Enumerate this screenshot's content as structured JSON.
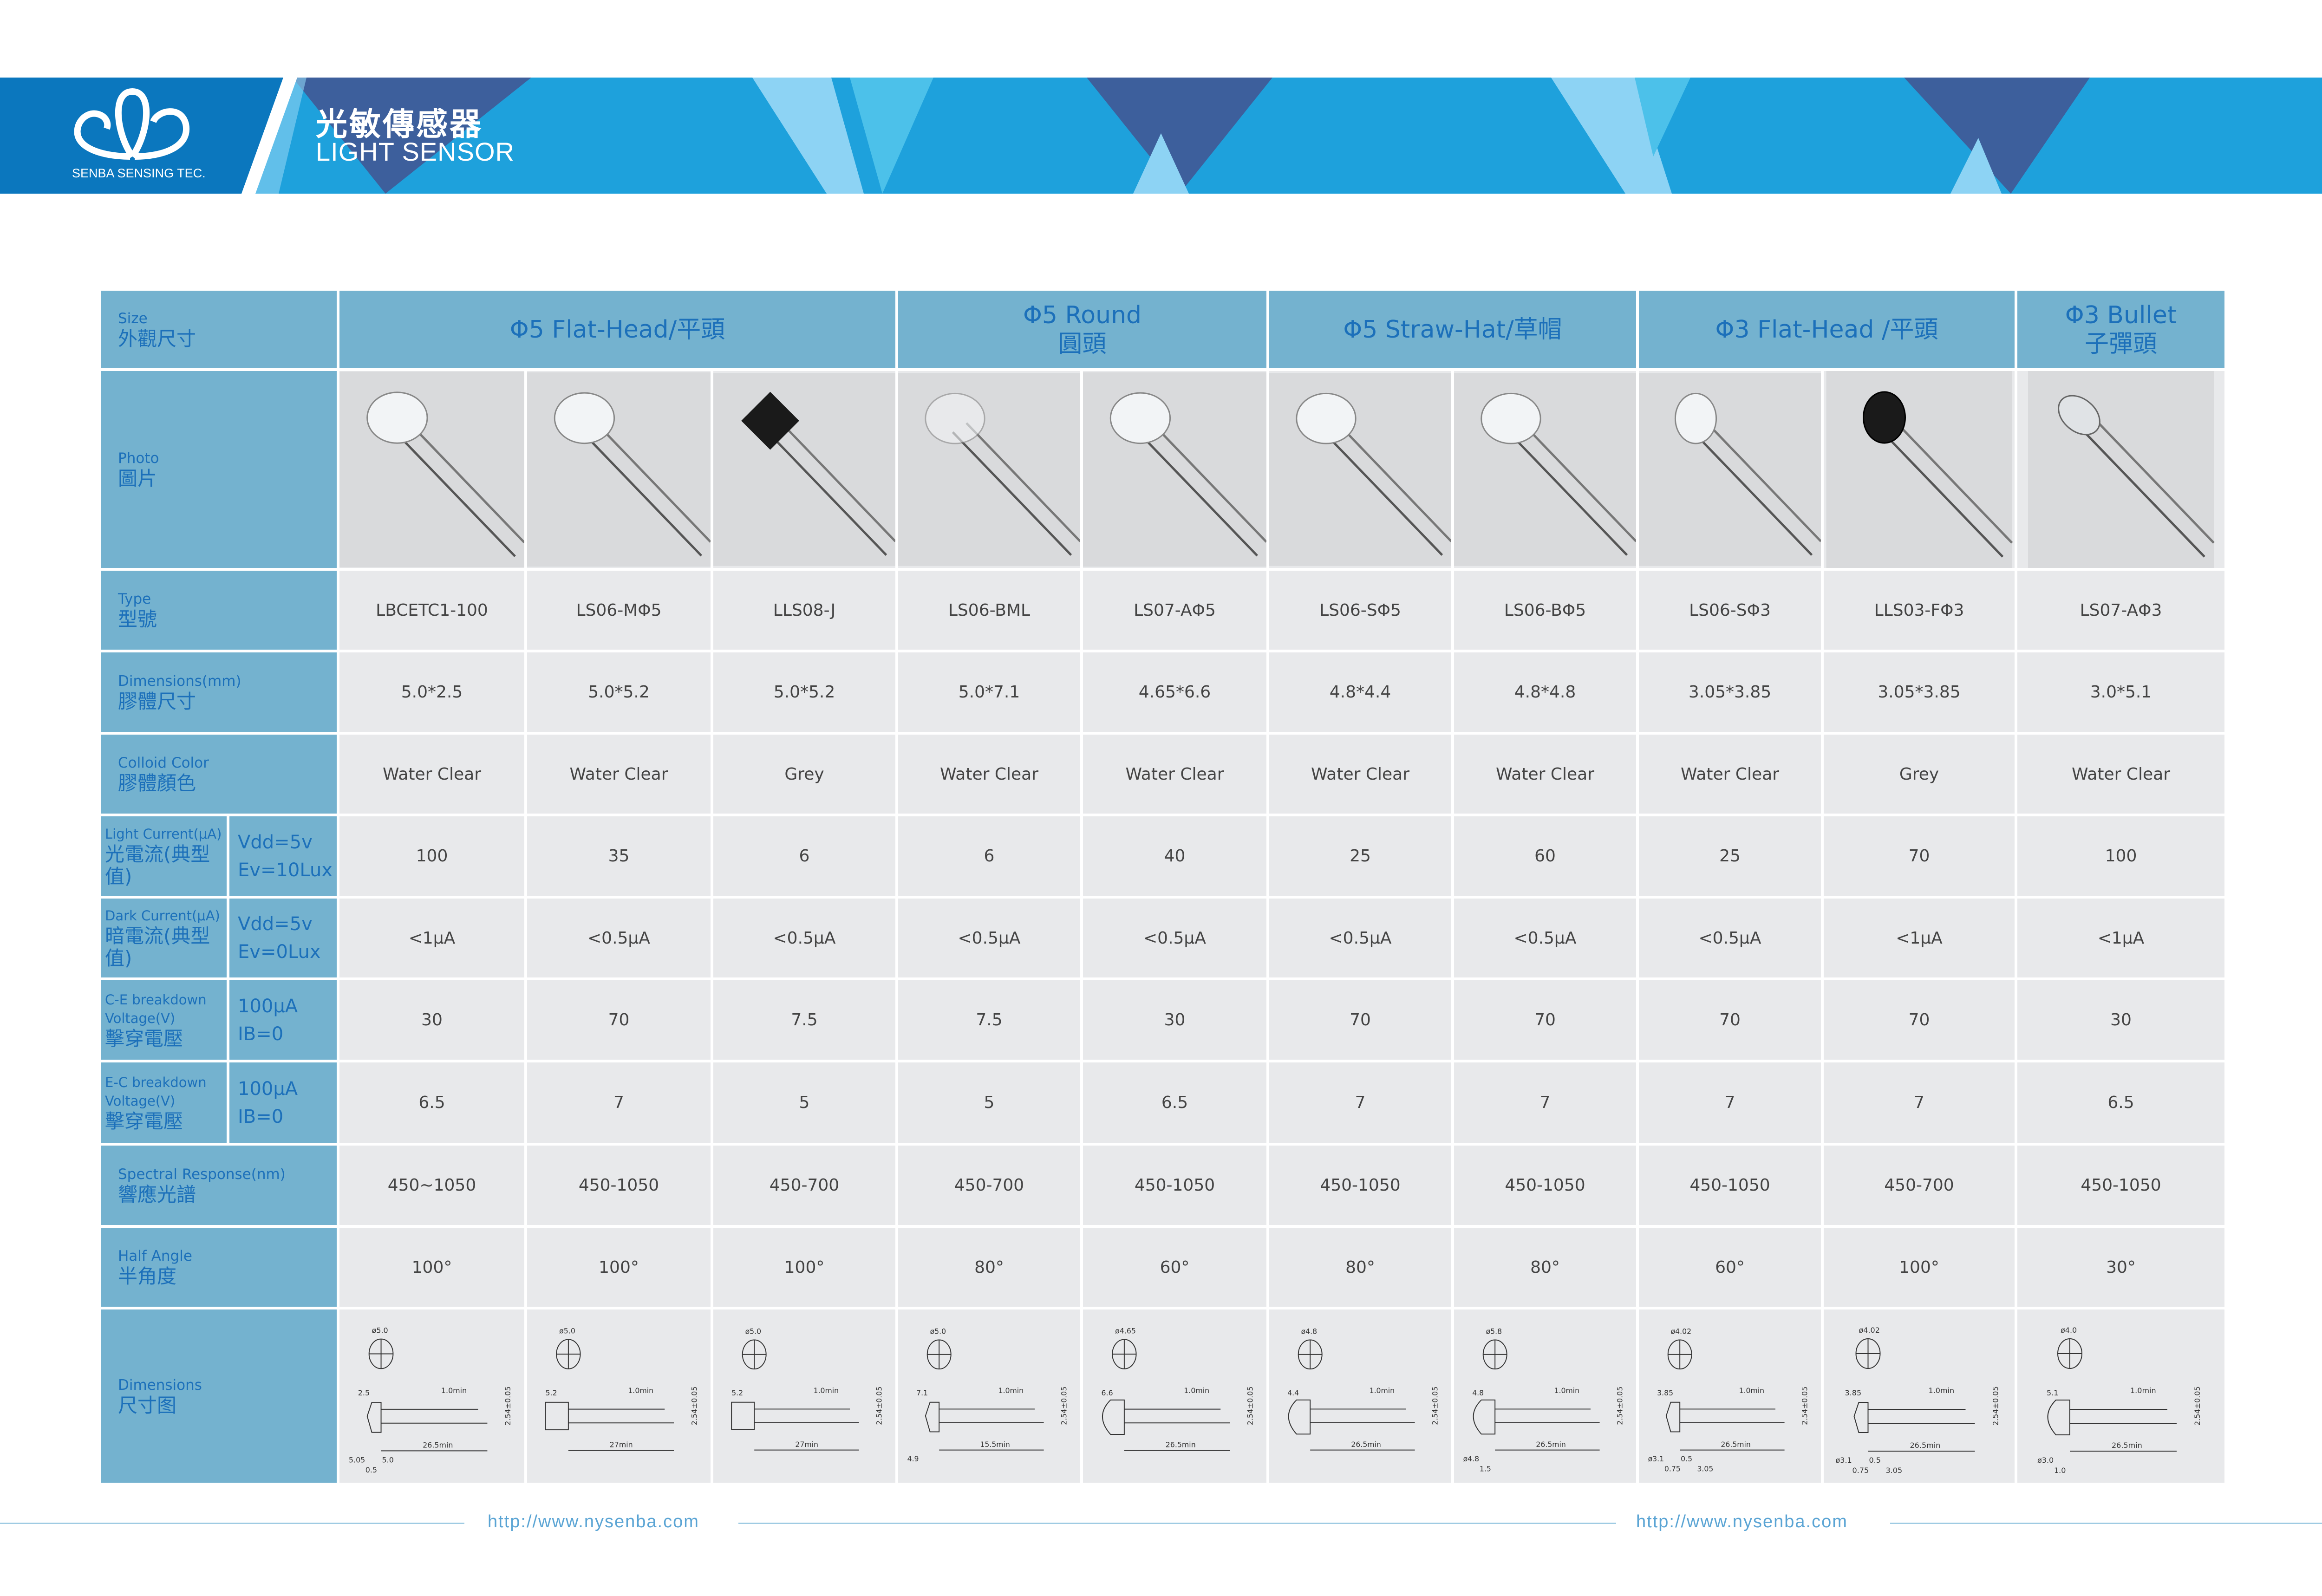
{
  "banner": {
    "brand": "SENBA SENSING TEC.",
    "title_zh": "光敏傳感器",
    "title_en": "LIGHT SENSOR",
    "colors": {
      "logo_panel": "#0b77be",
      "background": "#1ea1dc",
      "dark_shape": "#3d5f9c",
      "light_shape": "#8dd3f4",
      "cyan_shape": "#4cc1ea"
    }
  },
  "table": {
    "colors": {
      "label_bg": "#74b2cf",
      "label_text": "#1c70ba",
      "cell_bg": "#e8e9eb",
      "cell_text": "#444444"
    },
    "size_label": {
      "en": "Size",
      "zh": "外觀尺寸"
    },
    "groups": [
      {
        "lines": [
          "Φ5 Flat-Head/平頭"
        ],
        "span": 3
      },
      {
        "lines": [
          "Φ5 Round",
          "圓頭"
        ],
        "span": 2
      },
      {
        "lines": [
          "Φ5 Straw-Hat/草帽"
        ],
        "span": 2
      },
      {
        "lines": [
          "Φ3 Flat-Head /平頭"
        ],
        "span": 2
      },
      {
        "lines": [
          "Φ3 Bullet",
          "子彈頭"
        ],
        "span": 1
      }
    ],
    "photo_row": {
      "en": "Photo",
      "zh": "圖片",
      "photos": [
        "flat-clear-led-photo",
        "round-clear-led-photo",
        "square-grey-sensor-photo",
        "round-frosted-led-photo",
        "round-clear-led-photo",
        "straw-hat-led-photo",
        "straw-hat-led-photo",
        "flat-small-led-photo",
        "black-small-sensor-photo",
        "bullet-led-photo"
      ]
    },
    "rows": [
      {
        "key": "type",
        "en": "Type",
        "zh": "型號",
        "values": [
          "LBCETC1-100",
          "LS06-MΦ5",
          "LLS08-J",
          "LS06-BML",
          "LS07-AΦ5",
          "LS06-SΦ5",
          "LS06-BΦ5",
          "LS06-SΦ3",
          "LLS03-FΦ3",
          "LS07-AΦ3"
        ]
      },
      {
        "key": "dimensions",
        "en": "Dimensions(mm)",
        "zh": "膠體尺寸",
        "values": [
          "5.0*2.5",
          "5.0*5.2",
          "5.0*5.2",
          "5.0*7.1",
          "4.65*6.6",
          "4.8*4.4",
          "4.8*4.8",
          "3.05*3.85",
          "3.05*3.85",
          "3.0*5.1"
        ]
      },
      {
        "key": "color",
        "en": "Colloid Color",
        "zh": "膠體顏色",
        "values": [
          "Water Clear",
          "Water Clear",
          "Grey",
          "Water Clear",
          "Water Clear",
          "Water Clear",
          "Water Clear",
          "Water Clear",
          "Grey",
          "Water Clear"
        ]
      },
      {
        "key": "light_current",
        "en": "Light Current(μA)",
        "zh": "光電流(典型值)",
        "cond": [
          "Vdd=5v",
          "Ev=10Lux"
        ],
        "values": [
          "100",
          "35",
          "6",
          "6",
          "40",
          "25",
          "60",
          "25",
          "70",
          "100"
        ]
      },
      {
        "key": "dark_current",
        "en": "Dark Current(μA)",
        "zh": "暗電流(典型值)",
        "cond": [
          "Vdd=5v",
          "Ev=0Lux"
        ],
        "values": [
          "<1μA",
          "<0.5μA",
          "<0.5μA",
          "<0.5μA",
          "<0.5μA",
          "<0.5μA",
          "<0.5μA",
          "<0.5μA",
          "<1μA",
          "<1μA"
        ]
      },
      {
        "key": "ce_breakdown",
        "en": "C-E breakdown",
        "en2": "Voltage(V)",
        "zh": "擊穿電壓",
        "cond": [
          "100μA",
          "IB=0"
        ],
        "values": [
          "30",
          "70",
          "7.5",
          "7.5",
          "30",
          "70",
          "70",
          "70",
          "70",
          "30"
        ]
      },
      {
        "key": "ec_breakdown",
        "en": "E-C breakdown",
        "en2": "Voltage(V)",
        "zh": "擊穿電壓",
        "cond": [
          "100μA",
          "IB=0"
        ],
        "values": [
          "6.5",
          "7",
          "5",
          "5",
          "6.5",
          "7",
          "7",
          "7",
          "7",
          "6.5"
        ]
      },
      {
        "key": "spectral",
        "en": "Spectral Response(nm)",
        "zh": "響應光譜",
        "values": [
          "450~1050",
          "450-1050",
          "450-700",
          "450-700",
          "450-1050",
          "450-1050",
          "450-1050",
          "450-1050",
          "450-700",
          "450-1050"
        ]
      },
      {
        "key": "half_angle",
        "en": "Half Angle",
        "zh": "半角度",
        "values": [
          "100°",
          "100°",
          "100°",
          "80°",
          "60°",
          "80°",
          "80°",
          "60°",
          "100°",
          "30°"
        ]
      }
    ],
    "drawing_row": {
      "en": "Dimensions",
      "zh": "尺寸图",
      "drawings": [
        {
          "shape": "flat",
          "dia": "ø5.0",
          "body": "2.5",
          "lead": "26.5min",
          "pitch": "2.54±0.05",
          "min": "1.0min",
          "extra": [
            "5.05",
            "0.5",
            "5.0"
          ]
        },
        {
          "shape": "square",
          "dia": "ø5.0",
          "body": "5.2",
          "lead": "27min",
          "pitch": "2.54±0.05",
          "min": "1.0min",
          "extra": []
        },
        {
          "shape": "square",
          "dia": "ø5.0",
          "body": "5.2",
          "lead": "27min",
          "pitch": "2.54±0.05",
          "min": "1.0min",
          "extra": []
        },
        {
          "shape": "flat",
          "dia": "ø5.0",
          "body": "7.1",
          "lead": "15.5min",
          "pitch": "2.54±0.05",
          "min": "1.0min",
          "extra": [
            "4.9"
          ]
        },
        {
          "shape": "dome",
          "dia": "ø4.65",
          "body": "6.6",
          "lead": "26.5min",
          "pitch": "2.54±0.05",
          "min": "1.0min",
          "extra": []
        },
        {
          "shape": "dome",
          "dia": "ø4.8",
          "body": "4.4",
          "lead": "26.5min",
          "pitch": "2.54±0.05",
          "min": "1.0min",
          "extra": []
        },
        {
          "shape": "dome",
          "dia": "ø5.8",
          "body": "4.8",
          "lead": "26.5min",
          "pitch": "2.54±0.05",
          "min": "1.0min",
          "extra": [
            "ø4.8",
            "1.5"
          ]
        },
        {
          "shape": "flat",
          "dia": "ø4.02",
          "body": "3.85",
          "lead": "26.5min",
          "pitch": "2.54±0.05",
          "min": "1.0min",
          "extra": [
            "ø3.1",
            "0.75",
            "0.5",
            "3.05"
          ]
        },
        {
          "shape": "flat",
          "dia": "ø4.02",
          "body": "3.85",
          "lead": "26.5min",
          "pitch": "2.54±0.05",
          "min": "1.0min",
          "extra": [
            "ø3.1",
            "0.75",
            "0.5",
            "3.05"
          ]
        },
        {
          "shape": "dome",
          "dia": "ø4.0",
          "body": "5.1",
          "lead": "26.5min",
          "pitch": "2.54±0.05",
          "min": "1.0min",
          "extra": [
            "ø3.0",
            "1.0"
          ]
        }
      ]
    }
  },
  "footer": {
    "urls": [
      "http://www.nysenba.com",
      "http://www.nysenba.com"
    ]
  }
}
